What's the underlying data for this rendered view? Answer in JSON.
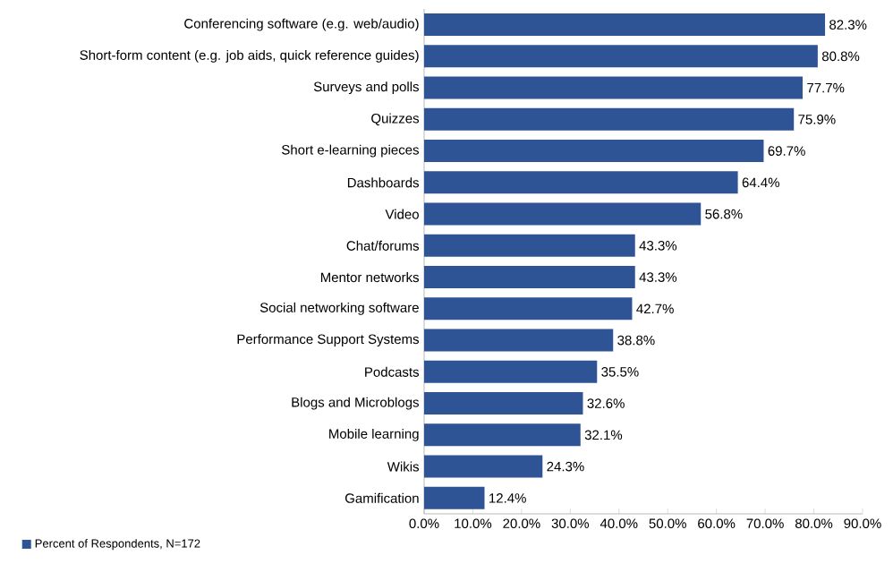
{
  "chart_data": {
    "type": "bar",
    "orientation": "horizontal",
    "categories": [
      "Conferencing software (e.g. web/audio)",
      "Short-form content (e.g. job aids, quick reference guides)",
      "Surveys and polls",
      "Quizzes",
      "Short e-learning pieces",
      "Dashboards",
      "Video",
      "Chat/forums",
      "Mentor networks",
      "Social networking software",
      "Performance Support Systems",
      "Podcasts",
      "Blogs and Microblogs",
      "Mobile learning",
      "Wikis",
      "Gamification"
    ],
    "series": [
      {
        "name": "Percent of Respondents, N=172",
        "color": "#2f5496",
        "values": [
          82.3,
          80.8,
          77.7,
          75.9,
          69.7,
          64.4,
          56.8,
          43.3,
          43.3,
          42.7,
          38.8,
          35.5,
          32.6,
          32.1,
          24.3,
          12.4
        ]
      }
    ],
    "value_labels": [
      "82.3%",
      "80.8%",
      "77.7%",
      "75.9%",
      "69.7%",
      "64.4%",
      "56.8%",
      "43.3%",
      "43.3%",
      "42.7%",
      "38.8%",
      "35.5%",
      "32.6%",
      "32.1%",
      "24.3%",
      "12.4%"
    ],
    "xlim": [
      0,
      90
    ],
    "xticks": [
      {
        "value": 0,
        "label": "0.0%"
      },
      {
        "value": 10,
        "label": "10.0%"
      },
      {
        "value": 20,
        "label": "20.0%"
      },
      {
        "value": 30,
        "label": "30.0%"
      },
      {
        "value": 40,
        "label": "40.0%"
      },
      {
        "value": 50,
        "label": "50.0%"
      },
      {
        "value": 60,
        "label": "60.0%"
      },
      {
        "value": 70,
        "label": "70.0%"
      },
      {
        "value": 80,
        "label": "80.0%"
      },
      {
        "value": 90,
        "label": "90.0%"
      }
    ],
    "legend": "bottom left"
  }
}
